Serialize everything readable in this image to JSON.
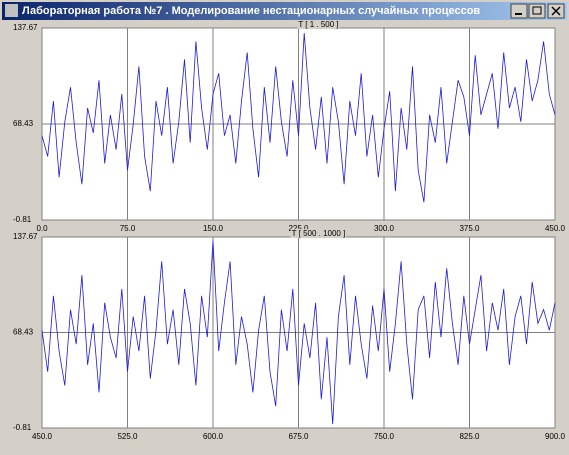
{
  "window": {
    "title": "Лабораторная работа №7 . Моделирование нестационарных случайных процессов"
  },
  "chart_data": [
    {
      "type": "line",
      "title": "T [ 1 . 500 ]",
      "color": "#1c1cd8",
      "x": [
        0,
        5,
        10,
        15,
        20,
        25,
        30,
        35,
        40,
        45,
        50,
        55,
        60,
        65,
        70,
        75,
        80,
        85,
        90,
        95,
        100,
        105,
        110,
        115,
        120,
        125,
        130,
        135,
        140,
        145,
        150,
        155,
        160,
        165,
        170,
        175,
        180,
        185,
        190,
        195,
        200,
        205,
        210,
        215,
        220,
        225,
        230,
        235,
        240,
        245,
        250,
        255,
        260,
        265,
        270,
        275,
        280,
        285,
        290,
        295,
        300,
        305,
        310,
        315,
        320,
        325,
        330,
        335,
        340,
        345,
        350,
        355,
        360,
        365,
        370,
        375,
        380,
        385,
        390,
        395,
        400,
        405,
        410,
        415,
        420,
        425,
        430,
        435,
        440,
        445,
        450
      ],
      "values": [
        60,
        45,
        85,
        30,
        70,
        95,
        55,
        25,
        80,
        62,
        100,
        40,
        75,
        50,
        90,
        35,
        68,
        110,
        45,
        20,
        85,
        60,
        95,
        40,
        70,
        115,
        55,
        128,
        80,
        50,
        90,
        105,
        60,
        75,
        40,
        85,
        120,
        65,
        30,
        95,
        55,
        110,
        70,
        45,
        100,
        60,
        134,
        80,
        50,
        88,
        40,
        95,
        70,
        25,
        85,
        60,
        105,
        45,
        75,
        30,
        65,
        92,
        20,
        80,
        50,
        110,
        35,
        12,
        75,
        55,
        95,
        40,
        70,
        100,
        88,
        60,
        118,
        75,
        90,
        105,
        65,
        120,
        80,
        95,
        70,
        115,
        85,
        100,
        128,
        90,
        75
      ],
      "xlim": [
        0,
        450
      ],
      "xticks": [
        {
          "value": 0,
          "label": "0.0"
        },
        {
          "value": 75,
          "label": "75.0"
        },
        {
          "value": 150,
          "label": "150.0"
        },
        {
          "value": 225,
          "label": "225.0"
        },
        {
          "value": 300,
          "label": "300.0"
        },
        {
          "value": 375,
          "label": "375.0"
        },
        {
          "value": 450,
          "label": "450.0"
        }
      ],
      "ylim": [
        -0.81,
        137.67
      ],
      "yticks": [
        -0.81,
        68.43,
        137.67
      ],
      "grid": true
    },
    {
      "type": "line",
      "title": "T [ 500 . 1000 ]",
      "color": "#1c1cd8",
      "x": [
        450,
        455,
        460,
        465,
        470,
        475,
        480,
        485,
        490,
        495,
        500,
        505,
        510,
        515,
        520,
        525,
        530,
        535,
        540,
        545,
        550,
        555,
        560,
        565,
        570,
        575,
        580,
        585,
        590,
        595,
        600,
        605,
        610,
        615,
        620,
        625,
        630,
        635,
        640,
        645,
        650,
        655,
        660,
        665,
        670,
        675,
        680,
        685,
        690,
        695,
        700,
        705,
        710,
        715,
        720,
        725,
        730,
        735,
        740,
        745,
        750,
        755,
        760,
        765,
        770,
        775,
        780,
        785,
        790,
        795,
        800,
        805,
        810,
        815,
        820,
        825,
        830,
        835,
        840,
        845,
        850,
        855,
        860,
        865,
        870,
        875,
        880,
        885,
        890,
        895,
        900
      ],
      "values": [
        70,
        40,
        95,
        55,
        30,
        85,
        60,
        110,
        45,
        75,
        25,
        90,
        65,
        50,
        100,
        40,
        80,
        55,
        95,
        35,
        70,
        120,
        60,
        85,
        45,
        100,
        75,
        30,
        95,
        65,
        135,
        55,
        90,
        120,
        45,
        80,
        60,
        25,
        70,
        95,
        40,
        15,
        85,
        55,
        100,
        30,
        75,
        50,
        90,
        20,
        65,
        2,
        80,
        110,
        45,
        95,
        60,
        35,
        88,
        55,
        100,
        40,
        75,
        120,
        60,
        20,
        85,
        95,
        50,
        105,
        65,
        115,
        75,
        45,
        95,
        60,
        85,
        110,
        55,
        90,
        70,
        100,
        45,
        80,
        95,
        60,
        105,
        75,
        85,
        70,
        90
      ],
      "xlim": [
        450,
        900
      ],
      "xticks": [
        {
          "value": 450,
          "label": "450.0"
        },
        {
          "value": 525,
          "label": "525.0"
        },
        {
          "value": 600,
          "label": "600.0"
        },
        {
          "value": 675,
          "label": "675.0"
        },
        {
          "value": 750,
          "label": "750.0"
        },
        {
          "value": 825,
          "label": "825.0"
        },
        {
          "value": 900,
          "label": "900.0"
        }
      ],
      "ylim": [
        -0.81,
        137.67
      ],
      "yticks": [
        -0.81,
        68.43,
        137.67
      ],
      "grid": true
    }
  ]
}
